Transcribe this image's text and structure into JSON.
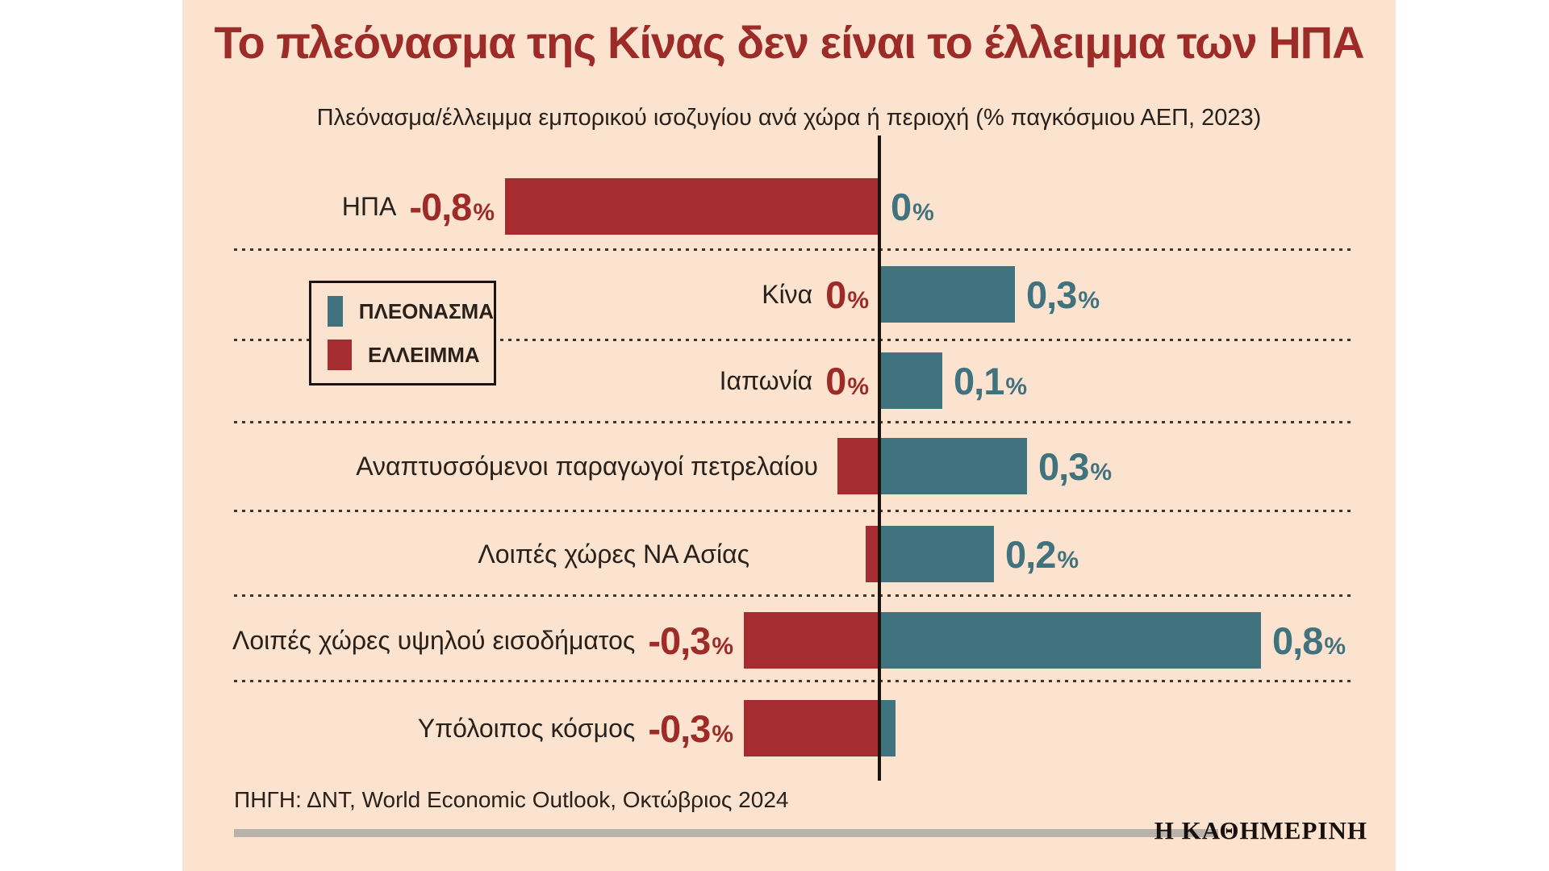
{
  "header": {
    "title": "Το πλεόνασμα της Κίνας δεν είναι το έλλειμμα των ΗΠΑ",
    "subtitle": "Πλεόνασμα/έλλειμμα εμπορικού ισοζυγίου ανά χώρα ή περιοχή (% παγκόσμιου ΑΕΠ, 2023)"
  },
  "legend": {
    "items": [
      {
        "label": "ΠΛΕΟΝΑΣΜΑ",
        "color": "#41737e"
      },
      {
        "label": "ΕΛΛΕΙΜΜΑ",
        "color": "#a52c31"
      }
    ]
  },
  "chart_data": {
    "type": "bar",
    "orientation": "horizontal-diverging",
    "title": "Το πλεόνασμα της Κίνας δεν είναι το έλλειμμα των ΗΠΑ",
    "subtitle": "Πλεόνασμα/έλλειμμα εμπορικού ισοζυγίου ανά χώρα ή περιοχή (% παγκόσμιου ΑΕΠ, 2023)",
    "unit_suffix": "%",
    "xlim": [
      -0.9,
      0.9
    ],
    "grid": "dotted row separators",
    "legend_position": "left, inside plot",
    "rows": [
      {
        "label": "ΗΠΑ",
        "deficit_value": -0.8,
        "deficit_label": "-0,8",
        "deficit_draw": 0.8,
        "surplus_value": 0,
        "surplus_label": "0",
        "surplus_draw": 0
      },
      {
        "label": "Κίνα",
        "deficit_value": 0,
        "deficit_label": "0",
        "deficit_draw": 0,
        "surplus_value": 0.3,
        "surplus_label": "0,3",
        "surplus_draw": 0.29
      },
      {
        "label": "Ιαπωνία",
        "deficit_value": 0,
        "deficit_label": "0",
        "deficit_draw": 0,
        "surplus_value": 0.1,
        "surplus_label": "0,1",
        "surplus_draw": 0.135
      },
      {
        "label": "Αναπτυσσόμενοι παραγωγοί πετρελαίου",
        "deficit_value": null,
        "deficit_label": "",
        "deficit_draw": 0.09,
        "surplus_value": 0.3,
        "surplus_label": "0,3",
        "surplus_draw": 0.315
      },
      {
        "label": "Λοιπές χώρες ΝΑ Ασίας",
        "deficit_value": null,
        "deficit_label": "",
        "deficit_draw": 0.03,
        "surplus_value": 0.2,
        "surplus_label": "0,2",
        "surplus_draw": 0.245
      },
      {
        "label": "Λοιπές χώρες υψηλού εισοδήματος",
        "deficit_value": -0.3,
        "deficit_label": "-0,3",
        "deficit_draw": 0.29,
        "surplus_value": 0.8,
        "surplus_label": "0,8",
        "surplus_draw": 0.815
      },
      {
        "label": "Υπόλοιπος κόσμος",
        "deficit_value": -0.3,
        "deficit_label": "-0,3",
        "deficit_draw": 0.29,
        "surplus_value": null,
        "surplus_label": "",
        "surplus_draw": 0.035
      }
    ]
  },
  "footer": {
    "source": "ΠΗΓΗ: ΔΝΤ, World Economic Outlook, Οκτώβριος 2024",
    "brand": "Η ΚΑΘΗΜΕΡΙΝΗ"
  },
  "colors": {
    "panel_background": "#fbe3d0",
    "title_red": "#9d2b27",
    "deficit_red": "#a52c31",
    "surplus_teal": "#41737e",
    "axis_black": "#1a1310",
    "divider_gray": "#b8b2a8"
  }
}
